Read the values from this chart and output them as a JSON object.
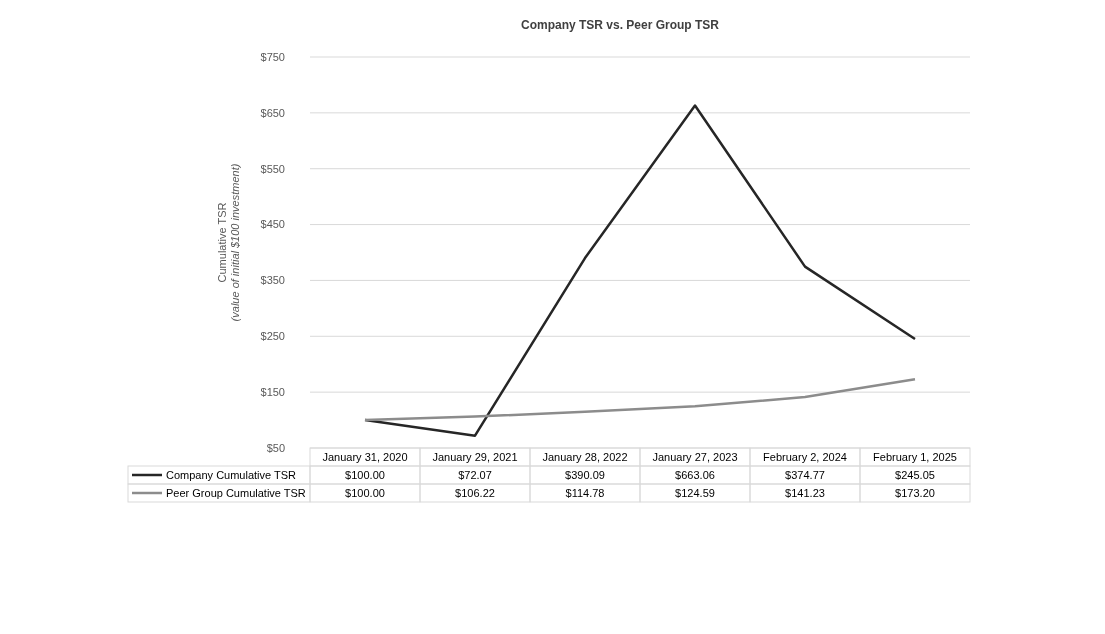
{
  "chart_data": {
    "type": "line",
    "title": "Company TSR vs. Peer Group TSR",
    "ylabel": "Cumulative  TSR\n(value of initial  $100 investment)",
    "categories": [
      "January 31, 2020",
      "January 29, 2021",
      "January 28, 2022",
      "January 27, 2023",
      "February 2, 2024",
      "February 1, 2025"
    ],
    "series": [
      {
        "name": "Company Cumulative TSR",
        "color": "#262626",
        "values": [
          100.0,
          72.07,
          390.09,
          663.06,
          374.77,
          245.05
        ],
        "value_labels": [
          "$100.00",
          "$72.07",
          "$390.09",
          "$663.06",
          "$374.77",
          "$245.05"
        ]
      },
      {
        "name": "Peer Group Cumulative TSR",
        "color": "#8c8c8c",
        "values": [
          100.0,
          106.22,
          114.78,
          124.59,
          141.23,
          173.2
        ],
        "value_labels": [
          "$100.00",
          "$106.22",
          "$114.78",
          "$124.59",
          "$141.23",
          "$173.20"
        ]
      }
    ],
    "ylim": [
      50,
      750
    ],
    "yticks": [
      {
        "value": 50,
        "label": "$50"
      },
      {
        "value": 150,
        "label": "$150"
      },
      {
        "value": 250,
        "label": "$250"
      },
      {
        "value": 350,
        "label": "$350"
      },
      {
        "value": 450,
        "label": "$450"
      },
      {
        "value": 550,
        "label": "$550"
      },
      {
        "value": 650,
        "label": "$650"
      },
      {
        "value": 750,
        "label": "$750"
      }
    ],
    "grid": "y",
    "legend": "bottom",
    "marker": "none",
    "line_style": "solid"
  }
}
